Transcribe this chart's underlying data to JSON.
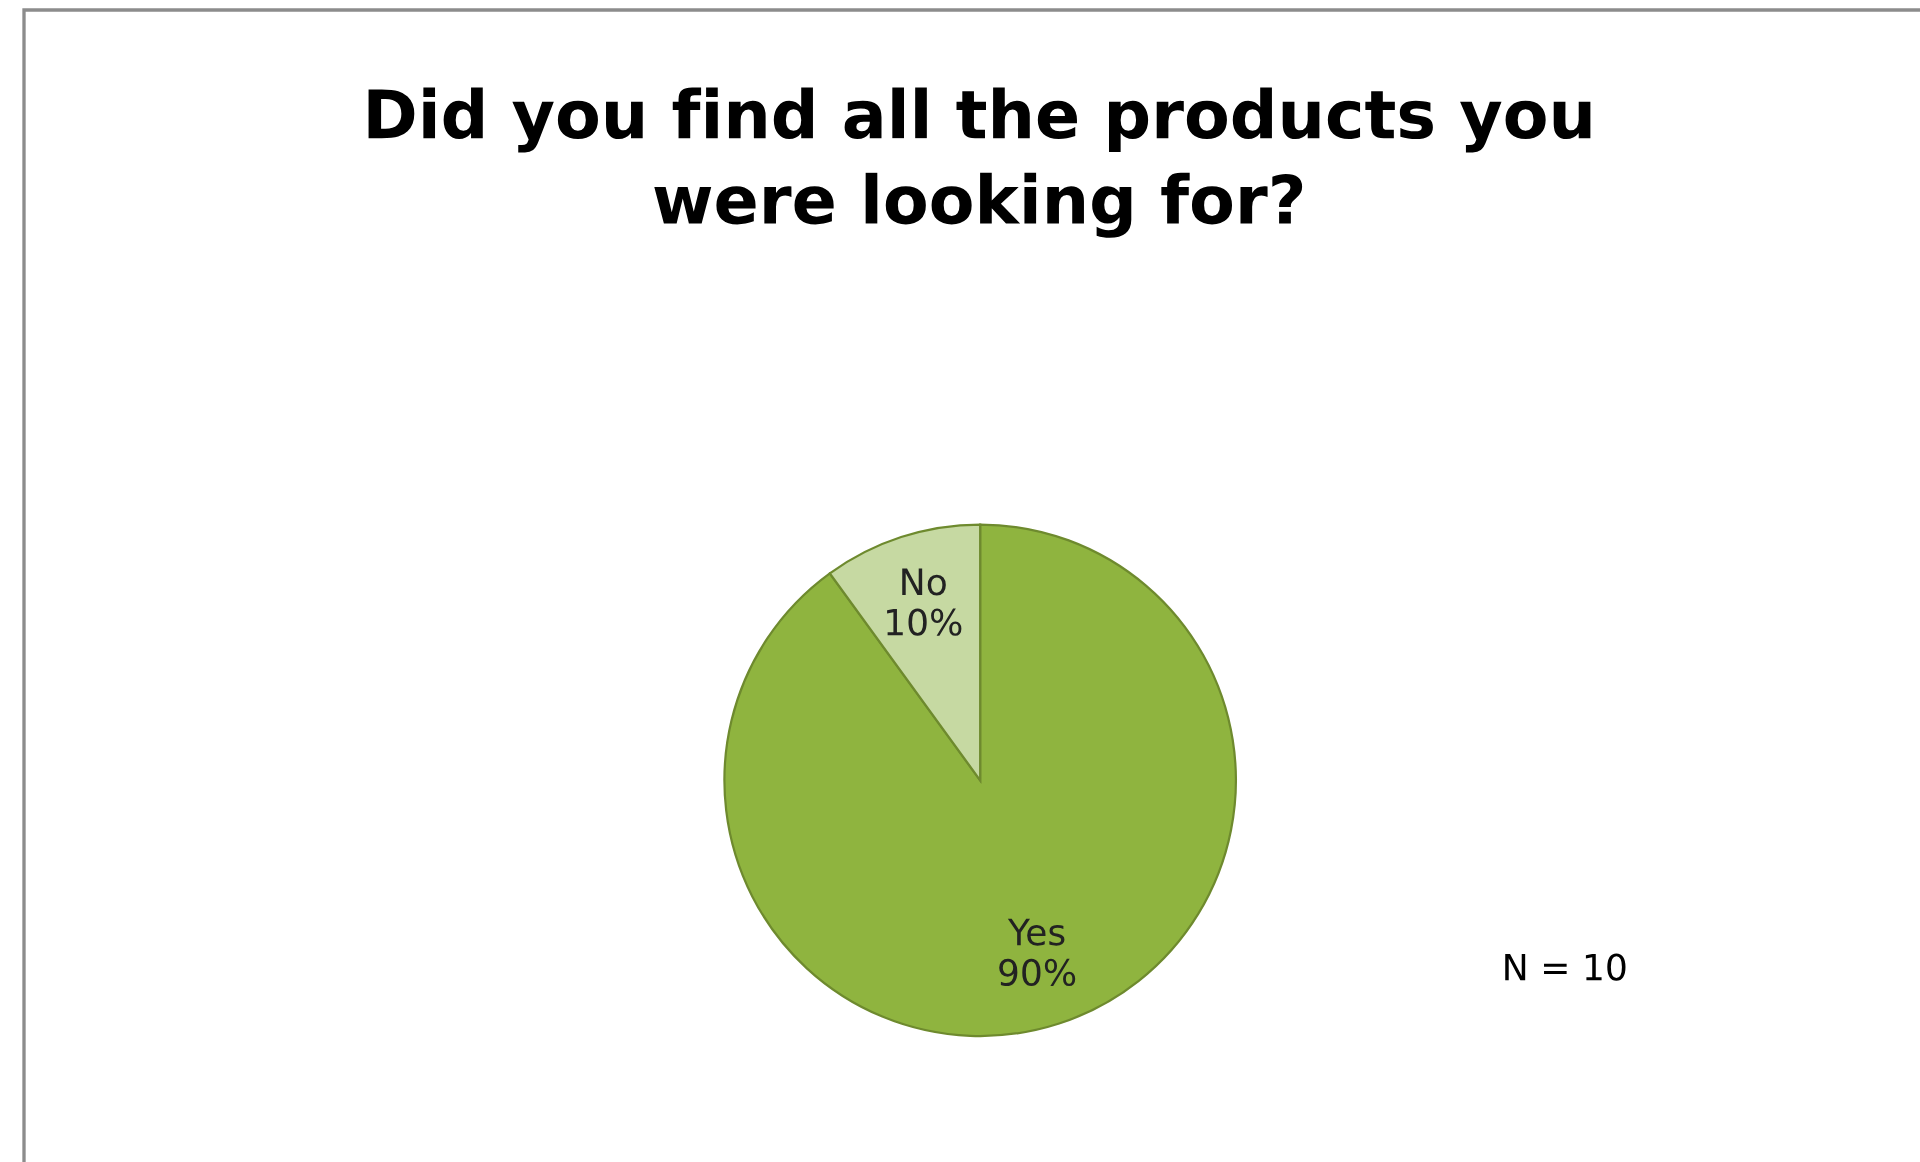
{
  "chart_data": {
    "type": "pie",
    "title": "Did you find all the products you\nwere looking for?",
    "categories": [
      "Yes",
      "No"
    ],
    "values": [
      90,
      10
    ],
    "colors": [
      "#8fb43f",
      "#c6d9a2"
    ],
    "value_labels": [
      "90%",
      "10%"
    ],
    "annotations": [
      "N = 10"
    ],
    "legend": false
  }
}
